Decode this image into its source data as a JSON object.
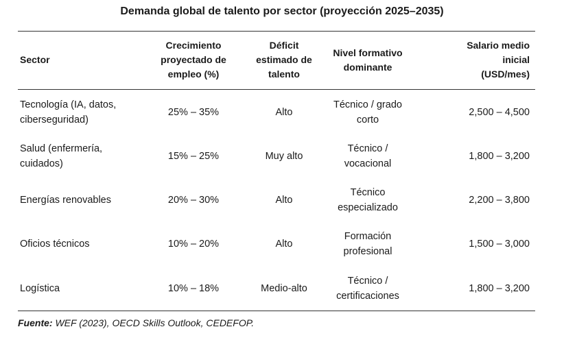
{
  "title": "Demanda global de talento por sector (proyección 2025–2035)",
  "columns": [
    "Sector",
    "Crecimiento\nproyectado de\nempleo (%)",
    "Déficit\nestimado de\ntalento",
    "Nivel formativo\ndominante",
    "Salario medio\ninicial\n(USD/mes)"
  ],
  "rows": [
    {
      "sector": "Tecnología (IA, datos,\nciberseguridad)",
      "growth": "25% – 35%",
      "deficit": "Alto",
      "education": "Técnico / grado\ncorto",
      "salary": "2,500 – 4,500"
    },
    {
      "sector": "Salud (enfermería,\ncuidados)",
      "growth": "15% – 25%",
      "deficit": "Muy alto",
      "education": "Técnico /\nvocacional",
      "salary": "1,800 – 3,200"
    },
    {
      "sector": "Energías renovables",
      "growth": "20% – 30%",
      "deficit": "Alto",
      "education": "Técnico\nespecializado",
      "salary": "2,200 – 3,800"
    },
    {
      "sector": "Oficios técnicos",
      "growth": "10% – 20%",
      "deficit": "Alto",
      "education": "Formación\nprofesional",
      "salary": "1,500 – 3,000"
    },
    {
      "sector": "Logística",
      "growth": "10% – 18%",
      "deficit": "Medio-alto",
      "education": "Técnico /\ncertificaciones",
      "salary": "1,800 – 3,200"
    }
  ],
  "source": {
    "label": "Fuente:",
    "text": " WEF (2023), OECD Skills Outlook, CEDEFOP."
  }
}
